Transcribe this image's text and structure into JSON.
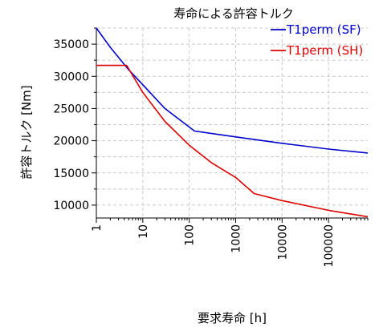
{
  "chart_data": {
    "type": "line",
    "title": "寿命による許容トルク",
    "xlabel": "要求寿命 [h]",
    "ylabel": "許容トルク [Nm]",
    "x_scale": "log",
    "xlim": [
      1,
      700000
    ],
    "ylim": [
      8000,
      37500
    ],
    "grid": true,
    "legend_position": "top-right",
    "x_ticks": [
      {
        "value": 1,
        "label": "1"
      },
      {
        "value": 10,
        "label": "10"
      },
      {
        "value": 100,
        "label": "100"
      },
      {
        "value": 1000,
        "label": "1000"
      },
      {
        "value": 10000,
        "label": "10000"
      },
      {
        "value": 100000,
        "label": "100000"
      }
    ],
    "y_ticks": [
      {
        "value": 10000,
        "label": "10000"
      },
      {
        "value": 15000,
        "label": "15000"
      },
      {
        "value": 20000,
        "label": "20000"
      },
      {
        "value": 25000,
        "label": "25000"
      },
      {
        "value": 30000,
        "label": "30000"
      },
      {
        "value": 35000,
        "label": "35000"
      }
    ],
    "series": [
      {
        "name": "T1perm (SF)",
        "color": "#0000cc",
        "points": [
          [
            1,
            37500
          ],
          [
            2,
            34500
          ],
          [
            5,
            31000
          ],
          [
            10,
            28700
          ],
          [
            30,
            25000
          ],
          [
            130,
            21500
          ],
          [
            1000,
            20600
          ],
          [
            10000,
            19600
          ],
          [
            100000,
            18700
          ],
          [
            700000,
            18100
          ]
        ]
      },
      {
        "name": "T1perm (SH)",
        "color": "#dd0000",
        "points": [
          [
            1,
            31700
          ],
          [
            4.5,
            31700
          ],
          [
            10,
            27500
          ],
          [
            30,
            23000
          ],
          [
            100,
            19300
          ],
          [
            300,
            16600
          ],
          [
            1000,
            14300
          ],
          [
            2500,
            11800
          ],
          [
            10000,
            10700
          ],
          [
            100000,
            9200
          ],
          [
            700000,
            8200
          ]
        ]
      }
    ]
  }
}
